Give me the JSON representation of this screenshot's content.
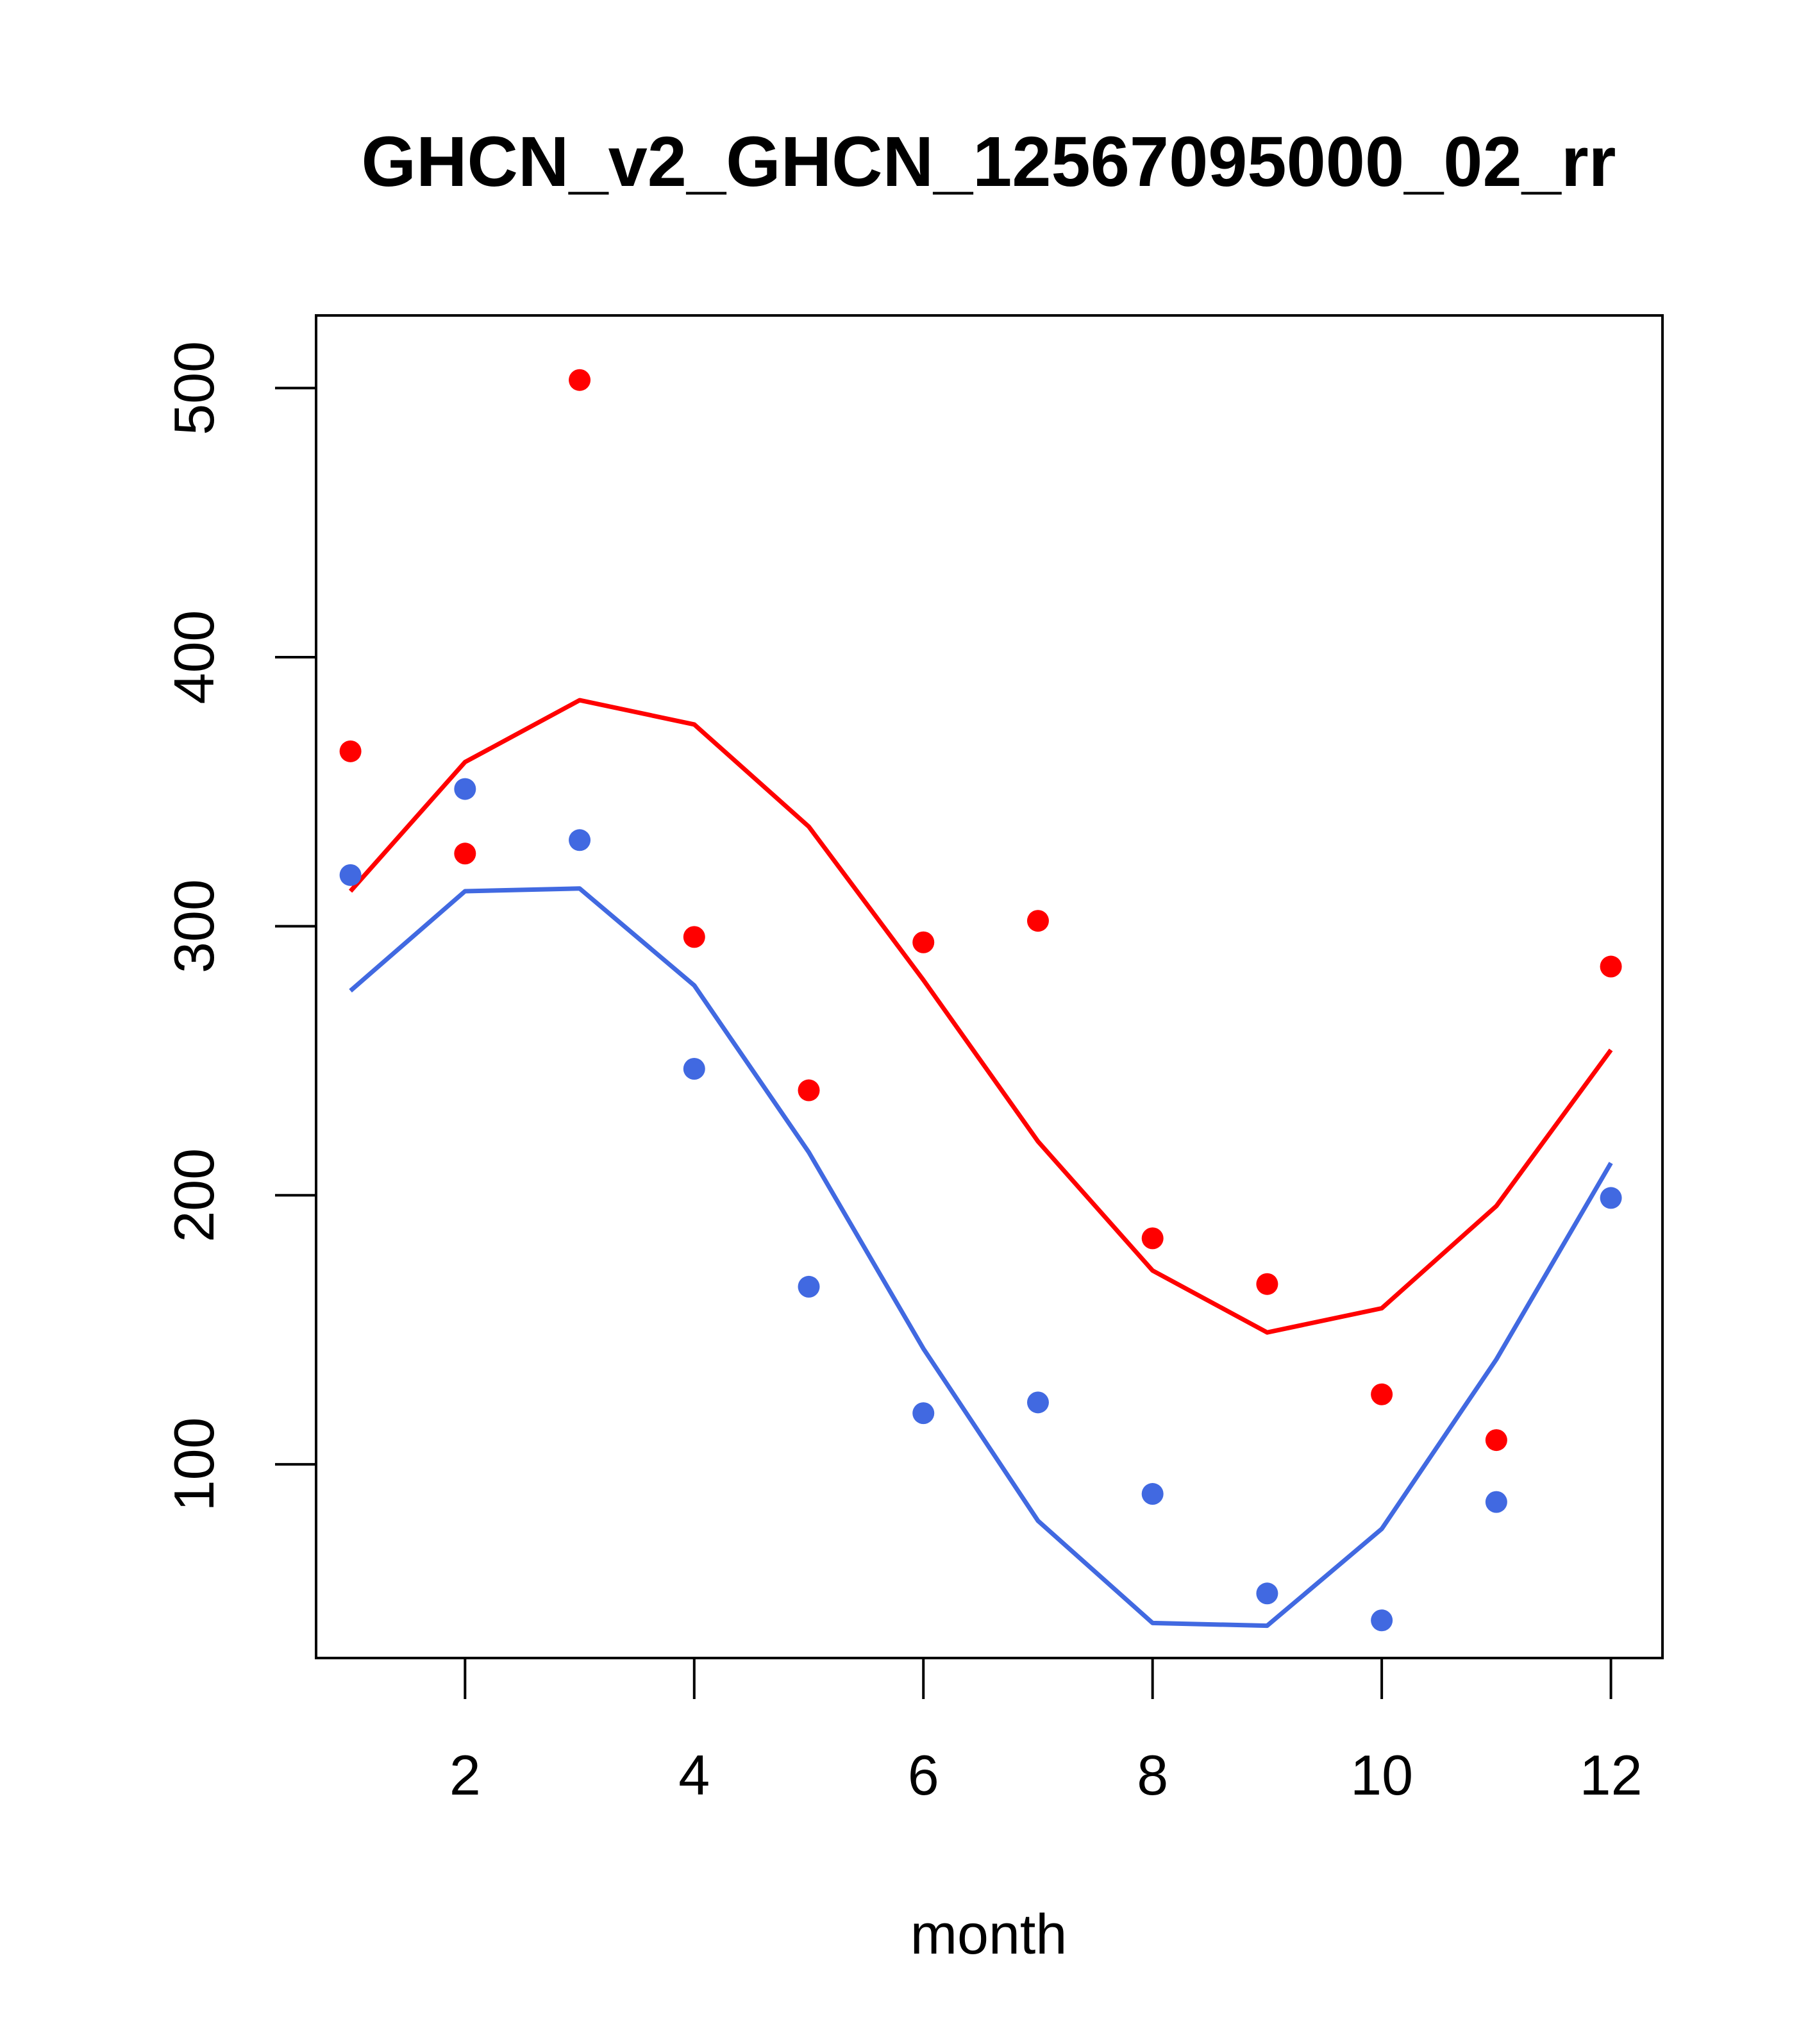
{
  "chart_data": {
    "type": "scatter",
    "title": "GHCN_v2_GHCN_12567095000_02_rr",
    "xlabel": "month",
    "ylabel": "",
    "xlim": [
      0.7,
      12.45
    ],
    "ylim": [
      28,
      527
    ],
    "x_ticks": [
      2,
      4,
      6,
      8,
      10,
      12
    ],
    "x_tick_labels": [
      "2",
      "4",
      "6",
      "8",
      "10",
      "12"
    ],
    "y_ticks": [
      100,
      200,
      300,
      400,
      500
    ],
    "y_tick_labels": [
      "100",
      "200",
      "300",
      "400",
      "500"
    ],
    "grid": false,
    "legend": "none",
    "x": [
      1,
      2,
      3,
      4,
      5,
      6,
      7,
      8,
      9,
      10,
      11,
      12
    ],
    "series": [
      {
        "color": "#ff0000",
        "points": [
          365,
          327,
          503,
          296,
          239,
          294,
          302,
          184,
          167,
          126,
          109,
          285
        ],
        "line": [
          313,
          361,
          384,
          375,
          337,
          280,
          220,
          172,
          149,
          158,
          196,
          254
        ]
      },
      {
        "color": "#4169e1",
        "points": [
          319,
          351,
          332,
          247,
          166,
          119,
          123,
          89,
          52,
          42,
          86,
          199
        ],
        "line": [
          276,
          313,
          314,
          278,
          216,
          143,
          79,
          41,
          40,
          76,
          139,
          212
        ]
      }
    ]
  }
}
